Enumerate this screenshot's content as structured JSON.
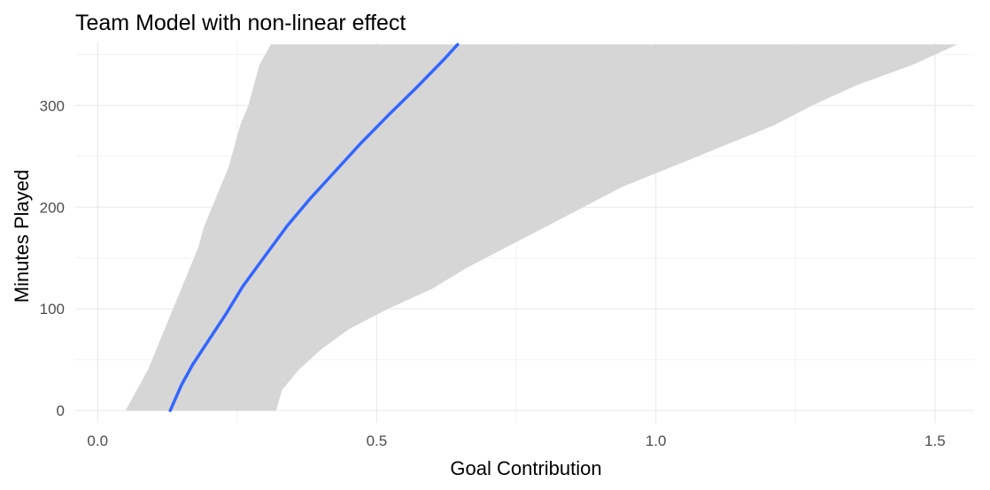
{
  "chart_data": {
    "type": "line",
    "title": "Team Model with non-linear effect",
    "xlabel": "Goal Contribution",
    "ylabel": "Minutes Played",
    "xlim": [
      -0.04,
      1.57
    ],
    "ylim": [
      -12,
      362
    ],
    "xticks": [
      0.0,
      0.5,
      1.0,
      1.5
    ],
    "xtick_labels": [
      "0.0",
      "0.5",
      "1.0",
      "1.5"
    ],
    "yticks": [
      0,
      100,
      200,
      300
    ],
    "ytick_labels": [
      "0",
      "100",
      "200",
      "300"
    ],
    "grid": true,
    "legend": "none",
    "series": [
      {
        "kind": "line",
        "color": "#3366ff",
        "x": [
          0.13,
          0.15,
          0.17,
          0.2,
          0.23,
          0.26,
          0.3,
          0.34,
          0.38,
          0.42,
          0.47,
          0.52,
          0.57,
          0.62,
          0.645
        ],
        "y": [
          0,
          25,
          45,
          70,
          95,
          122,
          152,
          182,
          208,
          232,
          262,
          290,
          317,
          345,
          360
        ]
      },
      {
        "kind": "ribbon",
        "color": "#d6d6d6",
        "y": [
          0,
          20,
          40,
          60,
          80,
          100,
          120,
          140,
          160,
          180,
          200,
          220,
          240,
          260,
          280,
          300,
          320,
          340,
          360
        ],
        "lower": [
          0.05,
          0.07,
          0.09,
          0.105,
          0.12,
          0.135,
          0.15,
          0.165,
          0.18,
          0.19,
          0.205,
          0.22,
          0.235,
          0.245,
          0.255,
          0.27,
          0.28,
          0.29,
          0.31
        ],
        "upper": [
          0.32,
          0.33,
          0.36,
          0.4,
          0.45,
          0.52,
          0.6,
          0.66,
          0.73,
          0.8,
          0.87,
          0.94,
          1.03,
          1.12,
          1.21,
          1.28,
          1.36,
          1.46,
          1.54
        ]
      }
    ]
  }
}
